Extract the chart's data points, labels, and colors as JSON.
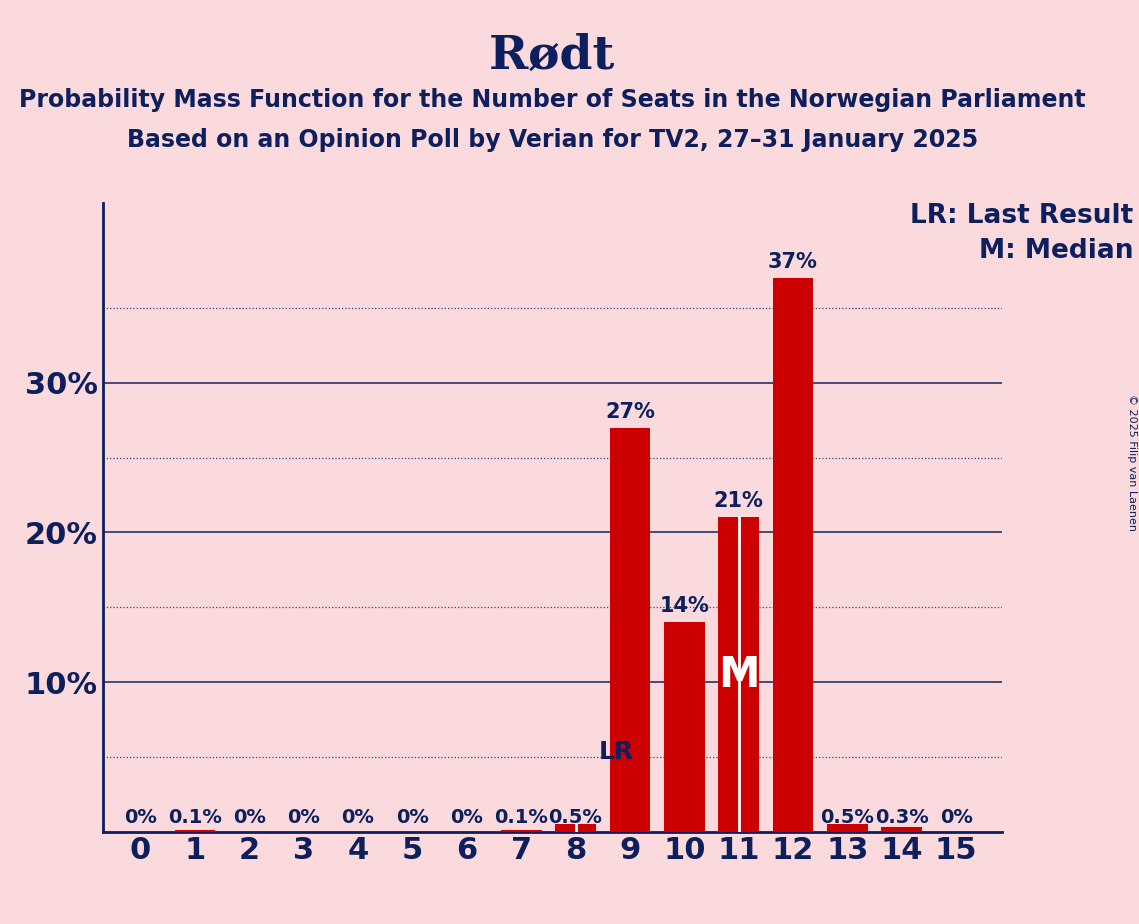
{
  "title": "Rødt",
  "subtitle1": "Probability Mass Function for the Number of Seats in the Norwegian Parliament",
  "subtitle2": "Based on an Opinion Poll by Verian for TV2, 27–31 January 2025",
  "copyright": "© 2025 Filip van Laenen",
  "seats": [
    0,
    1,
    2,
    3,
    4,
    5,
    6,
    7,
    8,
    9,
    10,
    11,
    12,
    13,
    14,
    15
  ],
  "probabilities": [
    0.0,
    0.001,
    0.0,
    0.0,
    0.0,
    0.0,
    0.0,
    0.001,
    0.005,
    0.27,
    0.14,
    0.21,
    0.37,
    0.005,
    0.003,
    0.0
  ],
  "label_strings": [
    "0%",
    "0.1%",
    "0%",
    "0%",
    "0%",
    "0%",
    "0%",
    "0.1%",
    "0.5%",
    "27%",
    "14%",
    "21%",
    "37%",
    "0.5%",
    "0.3%",
    "0%"
  ],
  "bar_color": "#cc0000",
  "background_color": "#fadadd",
  "text_color": "#0d1f5c",
  "title_fontsize": 34,
  "subtitle_fontsize": 17,
  "axis_tick_fontsize": 22,
  "bar_label_fontsize": 15,
  "legend_fontsize": 19,
  "lr_seat": 8,
  "median_seat": 11,
  "ylim": [
    0,
    0.42
  ],
  "solid_grid_lines": [
    0.1,
    0.2,
    0.3
  ],
  "dotted_grid_lines": [
    0.05,
    0.15,
    0.25,
    0.35
  ],
  "ytick_positions": [
    0.1,
    0.2,
    0.3
  ],
  "ytick_labels": [
    "10%",
    "20%",
    "30%"
  ]
}
